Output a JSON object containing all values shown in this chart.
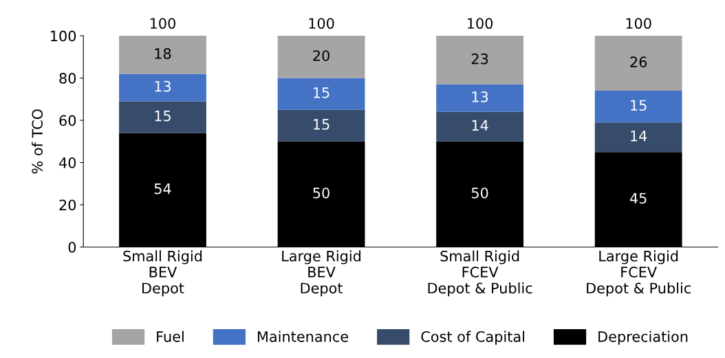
{
  "chart_data": {
    "type": "bar",
    "stacked": true,
    "ylabel": "% of TCO",
    "categories": [
      "Small Rigid\nBEV\nDepot",
      "Large Rigid\nBEV\nDepot",
      "Small Rigid\nFCEV\nDepot & Public",
      "Large Rigid\nFCEV\nDepot & Public"
    ],
    "series": [
      {
        "name": "Depreciation",
        "color": "#000000",
        "values": [
          54,
          50,
          50,
          45
        ]
      },
      {
        "name": "Cost of Capital",
        "color": "#374b6b",
        "values": [
          15,
          15,
          14,
          14
        ]
      },
      {
        "name": "Maintenance",
        "color": "#4472c4",
        "values": [
          13,
          15,
          13,
          15
        ]
      },
      {
        "name": "Fuel",
        "color": "#a5a5a5",
        "values": [
          18,
          20,
          23,
          26
        ]
      }
    ],
    "ylim": [
      0,
      100
    ],
    "yticks": [
      0,
      20,
      40,
      60,
      80,
      100
    ],
    "grid": false,
    "legend": "bottom",
    "data_labels": true,
    "totals": [
      "100",
      "100",
      "100",
      "100"
    ]
  }
}
